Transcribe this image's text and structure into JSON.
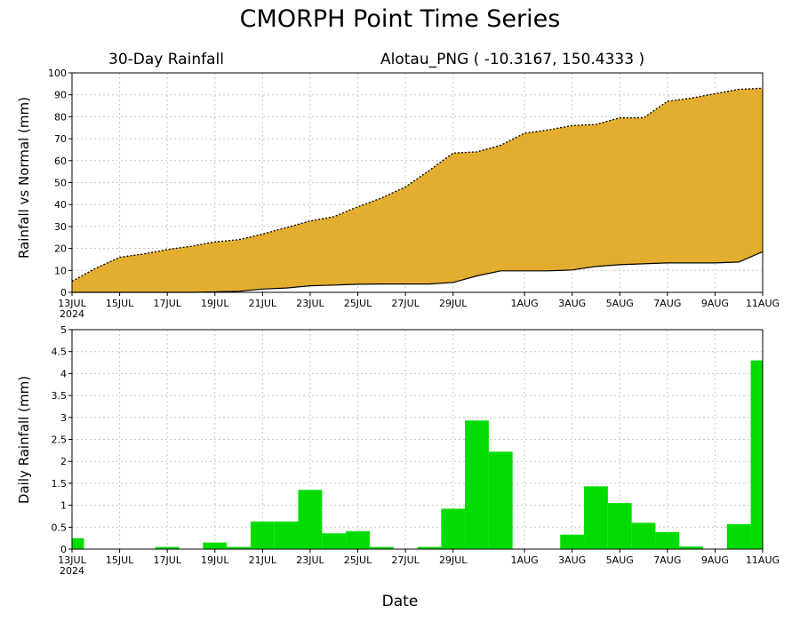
{
  "title": "CMORPH Point Time Series",
  "top_left_label": "30-Day Rainfall",
  "location_label": "Alotau_PNG ( -10.3167, 150.4333 )",
  "x_axis_label": "Date",
  "colors": {
    "accumulated_fill": "#e3ae2f",
    "daily_bars": "#00dc00",
    "grid": "#c8c8c8"
  },
  "chart_data": [
    {
      "type": "area",
      "ylabel": "Rainfall vs Normal (mm)",
      "ylim": [
        0,
        100
      ],
      "yticks": [
        0,
        10,
        20,
        30,
        40,
        50,
        60,
        70,
        80,
        90,
        100
      ],
      "grid": true,
      "x_start": "13JUL",
      "x_start_year": "2024",
      "xtick_labels": [
        "13JUL",
        "15JUL",
        "17JUL",
        "19JUL",
        "21JUL",
        "23JUL",
        "25JUL",
        "27JUL",
        "29JUL",
        "1AUG",
        "3AUG",
        "5AUG",
        "7AUG",
        "9AUG",
        "11AUG"
      ],
      "xtick_day_index": [
        0,
        2,
        4,
        6,
        8,
        10,
        12,
        14,
        16,
        19,
        21,
        23,
        25,
        27,
        29
      ],
      "series": [
        {
          "role": "accumulated",
          "values": [
            5,
            11,
            16,
            17.5,
            19.5,
            21,
            23,
            24,
            26.5,
            29.5,
            32.5,
            34.5,
            39,
            43,
            48,
            55.5,
            63.5,
            64,
            67,
            72.5,
            74,
            76,
            76.5,
            79.5,
            79.5,
            87,
            88.5,
            90.5,
            92.5,
            93
          ]
        },
        {
          "role": "normal",
          "values": [
            0,
            0,
            0,
            0,
            0,
            0,
            0.2,
            0.5,
            1.5,
            2,
            3,
            3.3,
            3.7,
            3.8,
            3.8,
            3.8,
            4.5,
            7.5,
            9.8,
            9.8,
            9.8,
            10.2,
            11.8,
            12.6,
            13,
            13.4,
            13.4,
            13.4,
            13.8,
            18.5
          ]
        }
      ]
    },
    {
      "type": "bar",
      "ylabel": "Daily Rainfall (mm)",
      "ylim": [
        0,
        5
      ],
      "yticks": [
        "0",
        "0.5",
        "1",
        "1.5",
        "2",
        "2.5",
        "3",
        "3.5",
        "4",
        "4.5",
        "5"
      ],
      "grid": true,
      "x_start": "13JUL",
      "x_start_year": "2024",
      "xtick_labels": [
        "13JUL",
        "15JUL",
        "17JUL",
        "19JUL",
        "21JUL",
        "23JUL",
        "25JUL",
        "27JUL",
        "29JUL",
        "1AUG",
        "3AUG",
        "5AUG",
        "7AUG",
        "9AUG",
        "11AUG"
      ],
      "xtick_day_index": [
        0,
        2,
        4,
        6,
        8,
        10,
        12,
        14,
        16,
        19,
        21,
        23,
        25,
        27,
        29
      ],
      "values": [
        0.25,
        0,
        0,
        0,
        0.05,
        0,
        0.15,
        0.05,
        0.63,
        0.63,
        1.35,
        0.36,
        0.41,
        0.05,
        0,
        0.05,
        0.92,
        2.93,
        2.22,
        0,
        0,
        0.33,
        1.43,
        1.05,
        0.6,
        0.39,
        0.06,
        0,
        0.57,
        4.3
      ]
    }
  ]
}
